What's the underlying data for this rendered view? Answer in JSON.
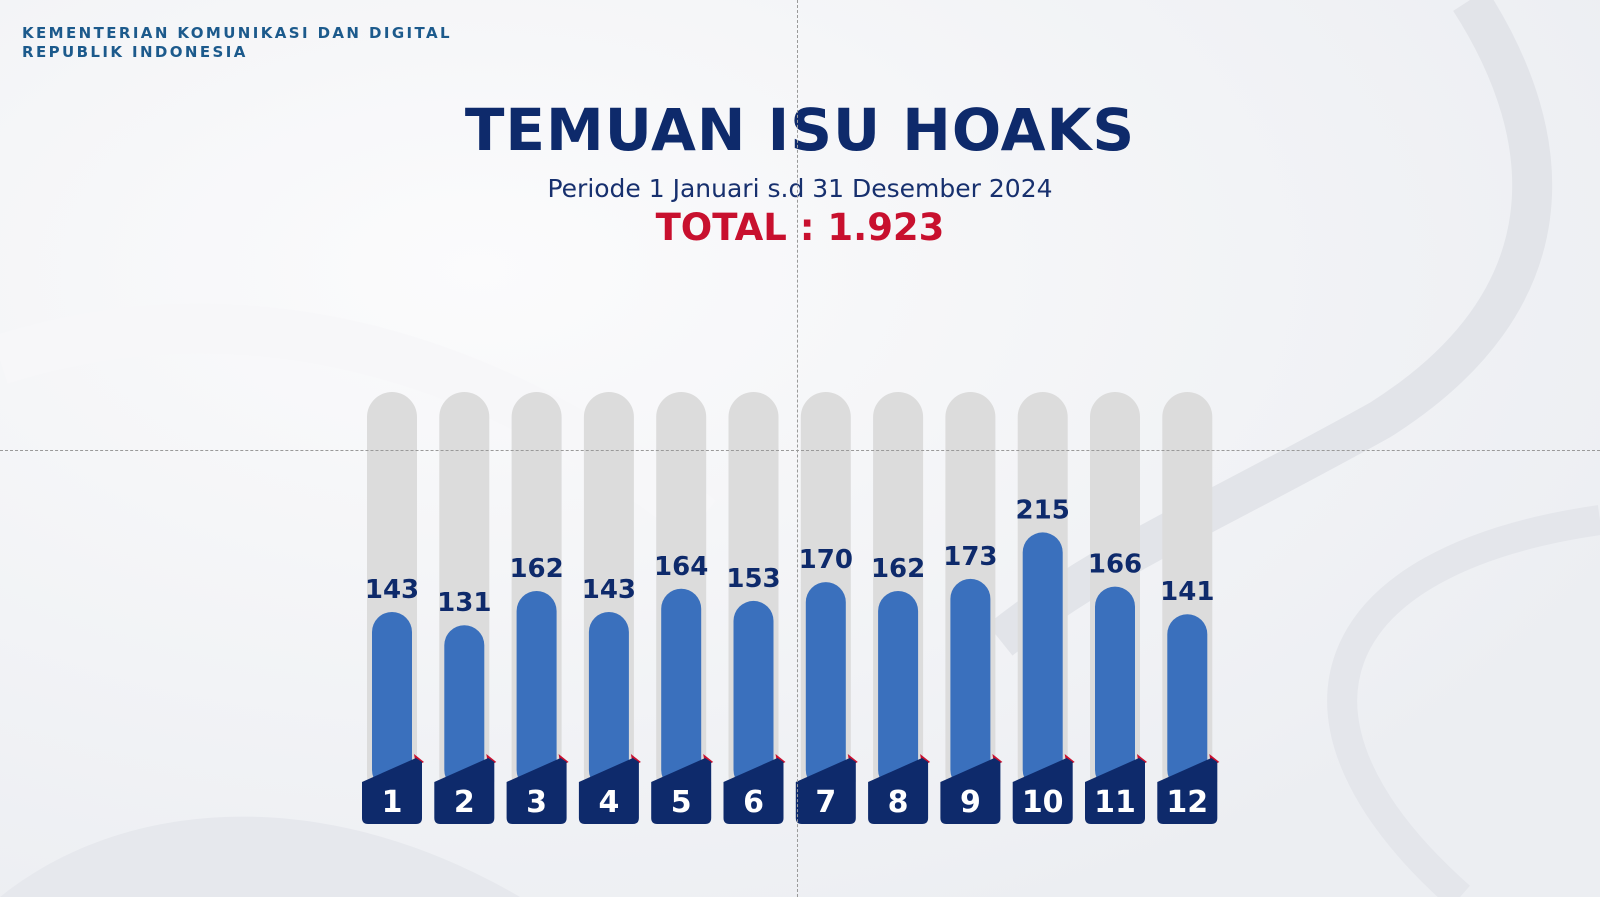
{
  "header": {
    "ministry_line1": "KEMENTERIAN KOMUNIKASI DAN DIGITAL",
    "ministry_line2": "REPUBLIK INDONESIA"
  },
  "title": "TEMUAN ISU HOAKS",
  "subtitle": "Periode 1 Januari s.d 31 Desember 2024",
  "total": "TOTAL : 1.923",
  "colors": {
    "title": "#0e2a6b",
    "total": "#c8102e",
    "bar_fill": "#3a70bd",
    "track": "#dcdcdc",
    "badge": "#0e2a6b",
    "badge_accent": "#c8102e"
  },
  "chart_data": {
    "type": "bar",
    "title": "TEMUAN ISU HOAKS",
    "categories": [
      "1",
      "2",
      "3",
      "4",
      "5",
      "6",
      "7",
      "8",
      "9",
      "10",
      "11",
      "12"
    ],
    "values": [
      143,
      131,
      162,
      143,
      164,
      153,
      170,
      162,
      173,
      215,
      166,
      141
    ],
    "xlabel": "",
    "ylabel": "",
    "grid": false,
    "legend": "none"
  }
}
